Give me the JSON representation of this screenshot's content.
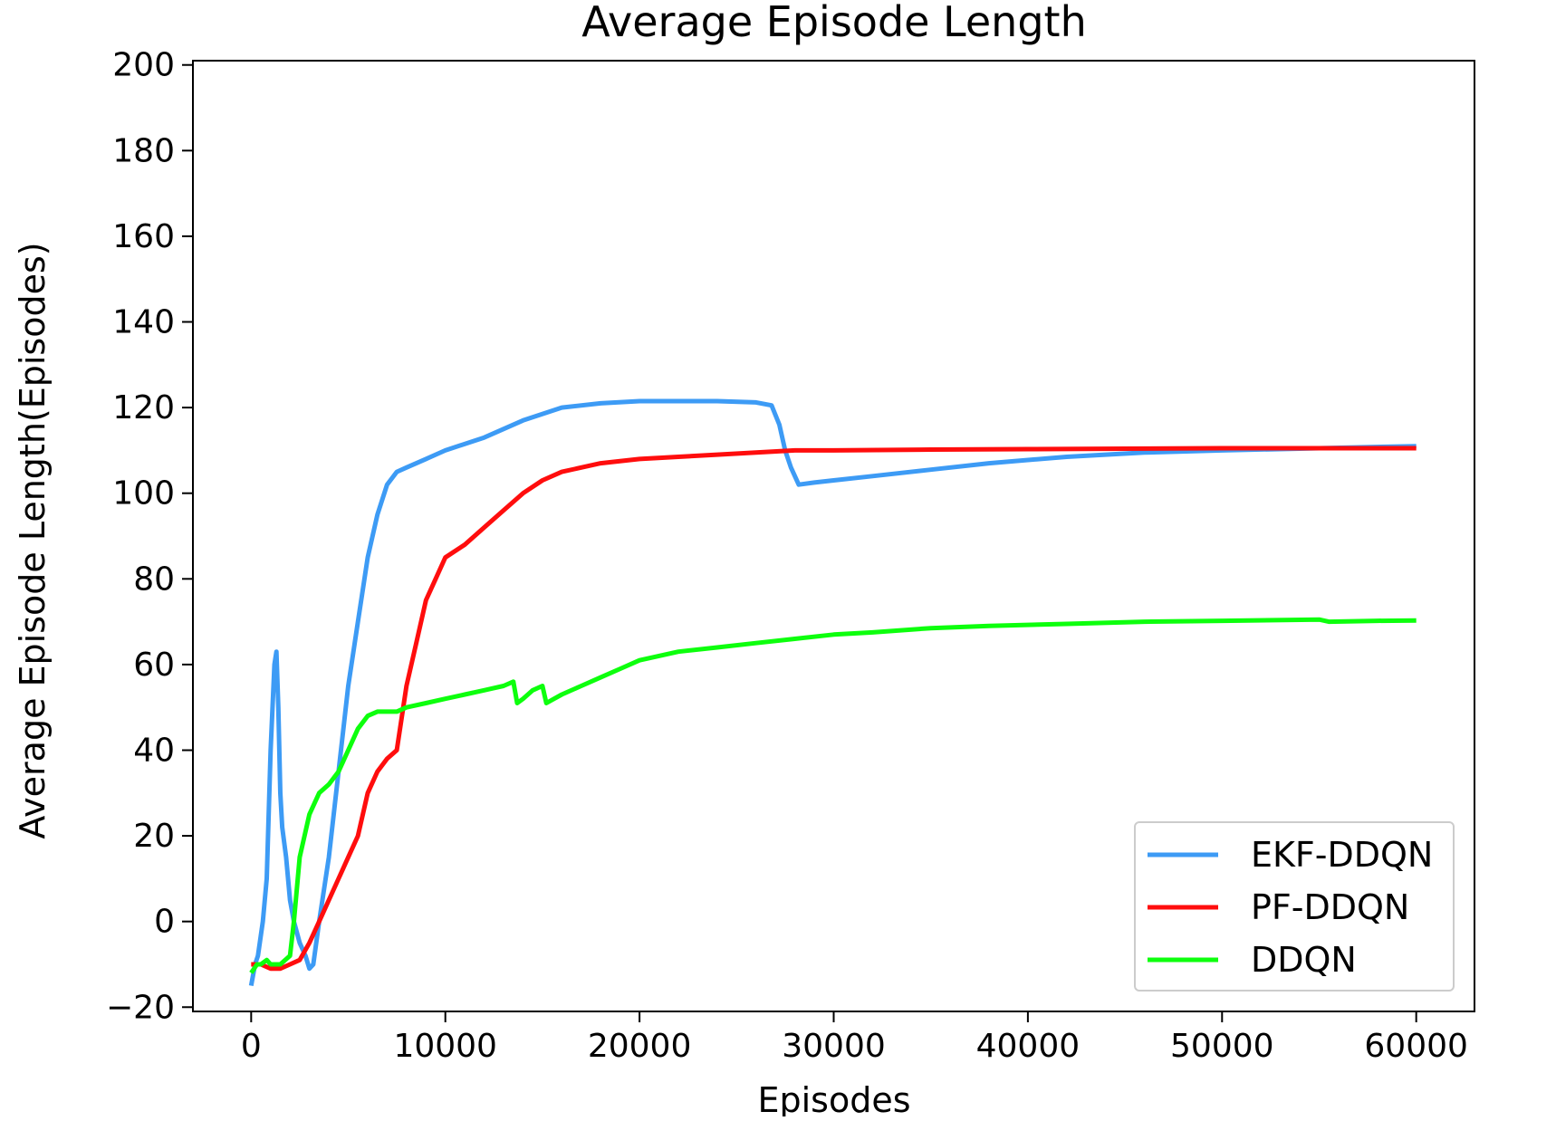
{
  "chart_data": {
    "type": "line",
    "title": "Average Episode Length",
    "xlabel": "Episodes",
    "ylabel": "Average Episode Length(Episodes)",
    "xlim": [
      -3000,
      63000
    ],
    "ylim": [
      -21,
      201
    ],
    "xticks": [
      0,
      10000,
      20000,
      30000,
      40000,
      50000,
      60000
    ],
    "yticks": [
      -20,
      0,
      20,
      40,
      60,
      80,
      100,
      120,
      140,
      160,
      180,
      200
    ],
    "ytick_labels": [
      "−20",
      "0",
      "20",
      "40",
      "60",
      "80",
      "100",
      "120",
      "140",
      "160",
      "180",
      "200"
    ],
    "grid": false,
    "legend_position": "lower right",
    "series": [
      {
        "name": "EKF-DDQN",
        "color": "#3d9bf5",
        "points": [
          [
            0,
            -15
          ],
          [
            200,
            -10
          ],
          [
            350,
            -8
          ],
          [
            600,
            0
          ],
          [
            800,
            10
          ],
          [
            1000,
            40
          ],
          [
            1200,
            60
          ],
          [
            1300,
            63
          ],
          [
            1400,
            50
          ],
          [
            1500,
            30
          ],
          [
            1600,
            22
          ],
          [
            1800,
            15
          ],
          [
            2000,
            5
          ],
          [
            2200,
            0
          ],
          [
            2500,
            -5
          ],
          [
            2800,
            -8
          ],
          [
            3000,
            -11
          ],
          [
            3200,
            -10
          ],
          [
            3500,
            0
          ],
          [
            4000,
            15
          ],
          [
            4500,
            35
          ],
          [
            5000,
            55
          ],
          [
            5500,
            70
          ],
          [
            6000,
            85
          ],
          [
            6500,
            95
          ],
          [
            7000,
            102
          ],
          [
            7500,
            105
          ],
          [
            8000,
            106
          ],
          [
            9000,
            108
          ],
          [
            10000,
            110
          ],
          [
            12000,
            113
          ],
          [
            14000,
            117
          ],
          [
            16000,
            120
          ],
          [
            18000,
            121
          ],
          [
            20000,
            121.5
          ],
          [
            22000,
            121.5
          ],
          [
            24000,
            121.5
          ],
          [
            26000,
            121.2
          ],
          [
            26800,
            120.5
          ],
          [
            27200,
            116
          ],
          [
            27500,
            110
          ],
          [
            27800,
            106
          ],
          [
            28200,
            102
          ],
          [
            29000,
            102.5
          ],
          [
            30000,
            103
          ],
          [
            32000,
            104
          ],
          [
            35000,
            105.5
          ],
          [
            38000,
            107
          ],
          [
            42000,
            108.5
          ],
          [
            46000,
            109.5
          ],
          [
            50000,
            110
          ],
          [
            55000,
            110.5
          ],
          [
            60000,
            111
          ]
        ]
      },
      {
        "name": "PF-DDQN",
        "color": "#ff0d0d",
        "points": [
          [
            0,
            -10
          ],
          [
            500,
            -10
          ],
          [
            1000,
            -11
          ],
          [
            1500,
            -11
          ],
          [
            2000,
            -10
          ],
          [
            2500,
            -9
          ],
          [
            3000,
            -5
          ],
          [
            3500,
            0
          ],
          [
            4000,
            5
          ],
          [
            4500,
            10
          ],
          [
            5000,
            15
          ],
          [
            5500,
            20
          ],
          [
            6000,
            30
          ],
          [
            6500,
            35
          ],
          [
            7000,
            38
          ],
          [
            7500,
            40
          ],
          [
            8000,
            55
          ],
          [
            8500,
            65
          ],
          [
            9000,
            75
          ],
          [
            9500,
            80
          ],
          [
            10000,
            85
          ],
          [
            11000,
            88
          ],
          [
            12000,
            92
          ],
          [
            13000,
            96
          ],
          [
            14000,
            100
          ],
          [
            15000,
            103
          ],
          [
            16000,
            105
          ],
          [
            18000,
            107
          ],
          [
            20000,
            108
          ],
          [
            22000,
            108.5
          ],
          [
            24000,
            109
          ],
          [
            26000,
            109.5
          ],
          [
            28000,
            110
          ],
          [
            30000,
            110
          ],
          [
            35000,
            110.2
          ],
          [
            40000,
            110.3
          ],
          [
            45000,
            110.4
          ],
          [
            50000,
            110.5
          ],
          [
            55000,
            110.5
          ],
          [
            60000,
            110.5
          ]
        ]
      },
      {
        "name": "DDQN",
        "color": "#0dff0d",
        "points": [
          [
            0,
            -12
          ],
          [
            300,
            -10
          ],
          [
            500,
            -10
          ],
          [
            800,
            -9
          ],
          [
            1000,
            -10
          ],
          [
            1500,
            -10
          ],
          [
            2000,
            -8
          ],
          [
            2200,
            0
          ],
          [
            2500,
            15
          ],
          [
            3000,
            25
          ],
          [
            3500,
            30
          ],
          [
            4000,
            32
          ],
          [
            4500,
            35
          ],
          [
            5000,
            40
          ],
          [
            5500,
            45
          ],
          [
            6000,
            48
          ],
          [
            6500,
            49
          ],
          [
            7000,
            49
          ],
          [
            7500,
            49
          ],
          [
            8000,
            50
          ],
          [
            9000,
            51
          ],
          [
            10000,
            52
          ],
          [
            11000,
            53
          ],
          [
            12000,
            54
          ],
          [
            13000,
            55
          ],
          [
            13500,
            56
          ],
          [
            13700,
            51
          ],
          [
            14000,
            52
          ],
          [
            14500,
            54
          ],
          [
            15000,
            55
          ],
          [
            15200,
            51
          ],
          [
            15600,
            52
          ],
          [
            16000,
            53
          ],
          [
            17000,
            55
          ],
          [
            18000,
            57
          ],
          [
            19000,
            59
          ],
          [
            20000,
            61
          ],
          [
            22000,
            63
          ],
          [
            24000,
            64
          ],
          [
            26000,
            65
          ],
          [
            28000,
            66
          ],
          [
            30000,
            67
          ],
          [
            32000,
            67.5
          ],
          [
            35000,
            68.5
          ],
          [
            38000,
            69
          ],
          [
            42000,
            69.5
          ],
          [
            46000,
            70
          ],
          [
            50000,
            70.2
          ],
          [
            55000,
            70.5
          ],
          [
            55500,
            70
          ],
          [
            58000,
            70.2
          ],
          [
            60000,
            70.3
          ]
        ]
      }
    ]
  }
}
